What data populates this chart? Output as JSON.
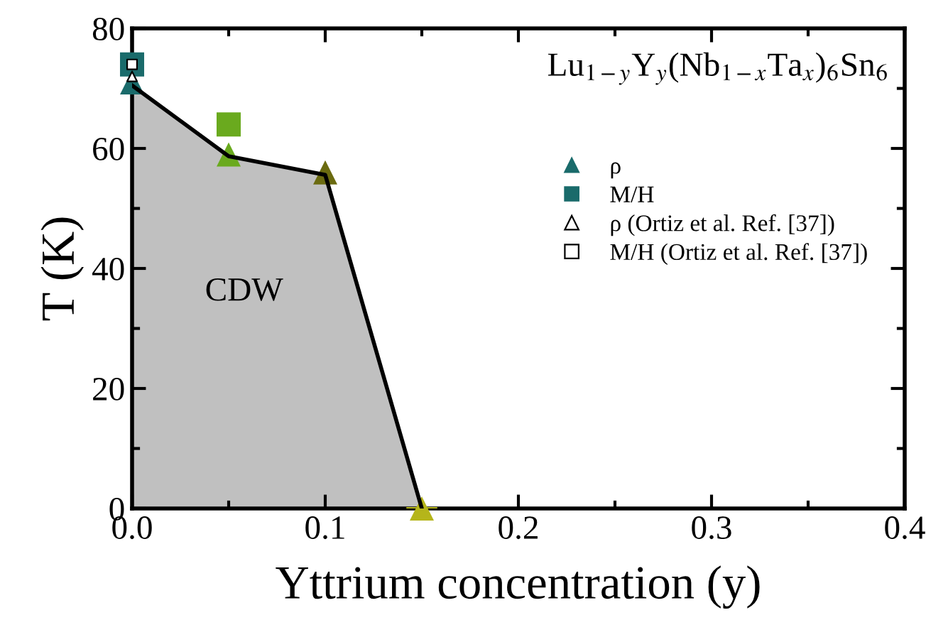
{
  "chart_data": {
    "type": "scatter",
    "title": "Lu$_{1−y}$Y$_{y}$(Nb$_{1−x}$Ta$_{x}$)$_{6}$Sn$_{6}$",
    "xlabel": "Yttrium concentration (y)",
    "ylabel": "T (K)",
    "series": [
      {
        "type": "area",
        "color": "#c0c0c0",
        "x": [
          0,
          0.05,
          0.1,
          0.15
        ],
        "values": [
          70.5,
          58.7,
          55.6,
          0
        ]
      },
      {
        "name": "ρ",
        "marker": "triangle",
        "colors": [
          "#1a6b6b",
          "#6aaa1e",
          "#6b6b10",
          "#b5b51a"
        ],
        "x": [
          0,
          0.05,
          0.1,
          0.15
        ],
        "values": [
          71,
          59,
          56,
          0
        ],
        "xerrors": [
          null,
          null,
          null,
          0.008
        ]
      },
      {
        "name": "M/H",
        "marker": "square",
        "colors": [
          "#1a6b6b",
          "#6aaa1e"
        ],
        "x": [
          0,
          0.05
        ],
        "values": [
          74,
          64
        ]
      },
      {
        "name": "ρ (Ortiz et al. Ref. [37])",
        "marker": "triangle",
        "color": "#ffffff",
        "x": [
          0
        ],
        "values": [
          72
        ]
      },
      {
        "name": "M/H (Ortiz et al. Ref. [37])",
        "marker": "square",
        "color": "#ffffff",
        "x": [
          0
        ],
        "values": [
          74
        ]
      }
    ],
    "annotations": [
      "CDW"
    ],
    "xlim": [
      0,
      0.4
    ],
    "xticks": [
      {
        "value": 0,
        "label": "0.0"
      },
      0.1,
      0.2,
      0.3,
      0.4
    ],
    "ylim": [
      0,
      80
    ],
    "yticks": [
      0,
      20,
      40,
      60,
      80
    ],
    "grid": false,
    "legend": "right"
  }
}
